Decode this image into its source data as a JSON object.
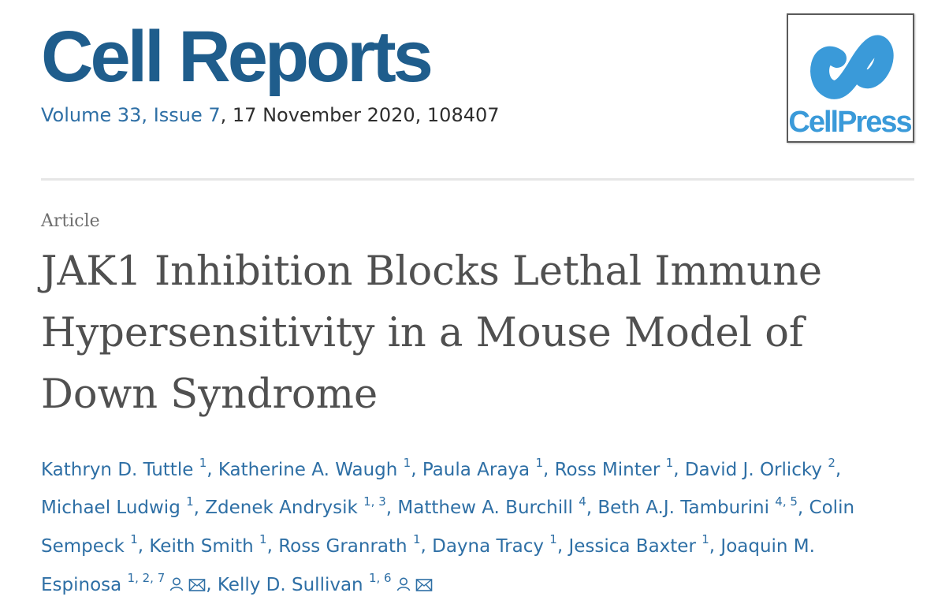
{
  "journal": {
    "title": "Cell Reports",
    "volume_issue": "Volume 33, Issue 7",
    "date_id": ", 17 November 2020, 108407"
  },
  "publisher_logo": {
    "text": "CellPress",
    "color": "#3a9ad9"
  },
  "article": {
    "type": "Article",
    "title": "JAK1 Inhibition Blocks Lethal Immune Hypersensitivity in a Mouse Model of Down Syndrome"
  },
  "authors": [
    {
      "name": "Kathryn D. Tuttle",
      "aff": "1"
    },
    {
      "name": "Katherine A. Waugh",
      "aff": "1"
    },
    {
      "name": "Paula Araya",
      "aff": "1"
    },
    {
      "name": "Ross Minter",
      "aff": "1"
    },
    {
      "name": "David J. Orlicky",
      "aff": "2"
    },
    {
      "name": "Michael Ludwig",
      "aff": "1"
    },
    {
      "name": "Zdenek Andrysik",
      "aff": "1, 3"
    },
    {
      "name": "Matthew A. Burchill",
      "aff": "4"
    },
    {
      "name": "Beth A.J. Tamburini",
      "aff": "4, 5"
    },
    {
      "name": "Colin Sempeck",
      "aff": "1"
    },
    {
      "name": "Keith Smith",
      "aff": "1"
    },
    {
      "name": "Ross Granrath",
      "aff": "1"
    },
    {
      "name": "Dayna Tracy",
      "aff": "1"
    },
    {
      "name": "Jessica Baxter",
      "aff": "1"
    },
    {
      "name": "Joaquin M. Espinosa",
      "aff": "1, 2, 7",
      "icons": [
        "person-icon",
        "envelope-icon"
      ]
    },
    {
      "name": "Kelly D. Sullivan",
      "aff": "1, 6",
      "icons": [
        "person-icon",
        "envelope-icon"
      ]
    }
  ],
  "colors": {
    "brand": "#1f5d8c",
    "link": "#2e6fa5",
    "title": "#505050"
  }
}
